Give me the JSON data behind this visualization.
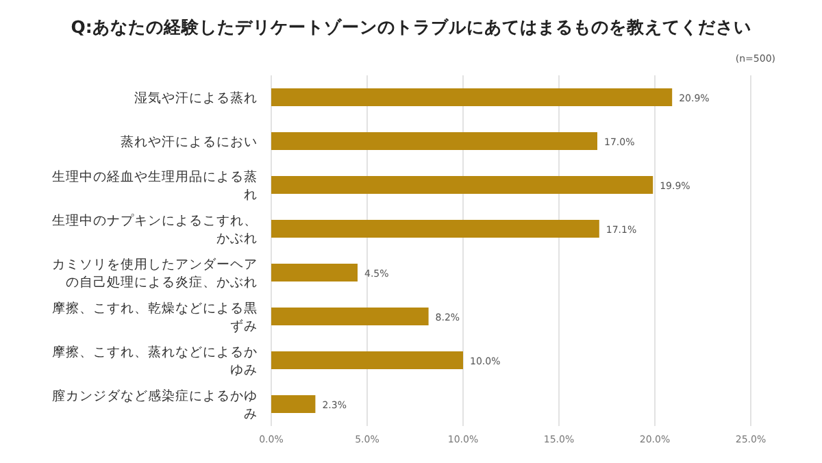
{
  "chart_data": {
    "type": "bar",
    "orientation": "horizontal",
    "title": "Q:あなたの経験したデリケートゾーンのトラブルにあてはまるものを教えてください",
    "annotations": [
      "(n=500)"
    ],
    "categories": [
      "湿気や汗による蒸れ",
      "蒸れや汗によるにおい",
      "生理中の経血や生理用品による蒸れ",
      "生理中のナプキンによるこすれ、かぶれ",
      "カミソリを使用したアンダーヘアの自己処理による炎症、かぶれ",
      "摩擦、こすれ、乾燥などによる黒ずみ",
      "摩擦、こすれ、蒸れなどによるかゆみ",
      "膣カンジダなど感染症によるかゆみ"
    ],
    "values": [
      20.9,
      17.0,
      19.9,
      17.1,
      4.5,
      8.2,
      10.0,
      2.3
    ],
    "value_labels": [
      "20.9%",
      "17.0%",
      "19.9%",
      "17.1%",
      "4.5%",
      "8.2%",
      "10.0%",
      "2.3%"
    ],
    "color": "#b8890f",
    "xlim": [
      0,
      25
    ],
    "xticks": [
      {
        "value": 0,
        "label": "0.0%"
      },
      {
        "value": 5,
        "label": "5.0%"
      },
      {
        "value": 10,
        "label": "10.0%"
      },
      {
        "value": 15,
        "label": "15.0%"
      },
      {
        "value": 20,
        "label": "20.0%"
      },
      {
        "value": 25,
        "label": "25.0%"
      }
    ],
    "grid": "x"
  }
}
